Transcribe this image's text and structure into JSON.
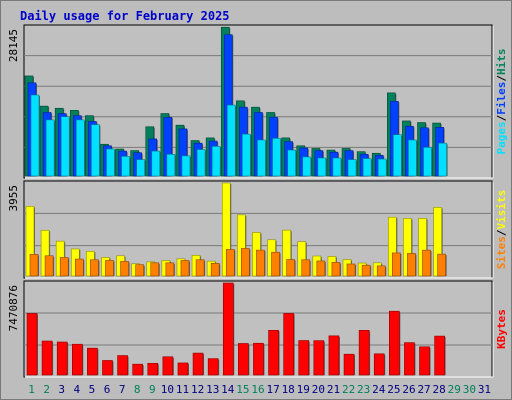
{
  "title": "Daily usage for February 2025",
  "colors": {
    "hits": "#00805c",
    "files": "#0040ff",
    "pages": "#00e0ff",
    "visits": "#ffff00",
    "sites": "#ff8000",
    "kbytes": "#ff0000",
    "weekday_label": "#000080",
    "weekend_label": "#00805c",
    "panel_bg": "#c0c0c0"
  },
  "chart_data": [
    {
      "type": "bar",
      "panel": "hits_files_pages",
      "y_tick_label": "28145",
      "ylim": [
        0,
        28145
      ],
      "legend": [
        {
          "name": "Pages",
          "color": "#00e0ff"
        },
        {
          "name": "Files",
          "color": "#0040ff"
        },
        {
          "name": "Hits",
          "color": "#00805c"
        }
      ],
      "categories": [
        "1",
        "2",
        "3",
        "4",
        "5",
        "6",
        "7",
        "8",
        "9",
        "10",
        "11",
        "12",
        "13",
        "14",
        "15",
        "16",
        "17",
        "18",
        "19",
        "20",
        "21",
        "22",
        "23",
        "24",
        "25",
        "26",
        "27",
        "28",
        "29",
        "30",
        "31"
      ],
      "series": [
        {
          "name": "Hits",
          "values": [
            18900,
            13200,
            12800,
            12400,
            11400,
            6000,
            5100,
            4800,
            9300,
            11800,
            9600,
            6700,
            7200,
            28100,
            14200,
            13000,
            12000,
            7200,
            5700,
            5200,
            4900,
            5200,
            4600,
            4300,
            15700,
            10400,
            10100,
            10000,
            null,
            null,
            null
          ]
        },
        {
          "name": "Files",
          "values": [
            17600,
            12000,
            11800,
            11400,
            10300,
            5700,
            4700,
            4400,
            7000,
            11100,
            8900,
            6200,
            6600,
            26700,
            13000,
            12000,
            11100,
            6500,
            5300,
            4800,
            4500,
            4800,
            4100,
            3900,
            14100,
            9400,
            9100,
            9200,
            null,
            null,
            null
          ]
        },
        {
          "name": "Pages",
          "values": [
            15300,
            10600,
            11200,
            10600,
            9700,
            5100,
            3700,
            3100,
            4700,
            4100,
            3800,
            5000,
            5600,
            13400,
            7900,
            6800,
            7100,
            4900,
            3600,
            3400,
            3400,
            3100,
            3300,
            3200,
            7800,
            6800,
            5400,
            6200,
            null,
            null,
            null
          ]
        }
      ]
    },
    {
      "type": "bar",
      "panel": "visits_sites",
      "y_tick_label": "3955",
      "ylim": [
        0,
        3955
      ],
      "legend": [
        {
          "name": "Sites",
          "color": "#ff8000"
        },
        {
          "name": "Visits",
          "color": "#ffff00"
        }
      ],
      "categories": [
        "1",
        "2",
        "3",
        "4",
        "5",
        "6",
        "7",
        "8",
        "9",
        "10",
        "11",
        "12",
        "13",
        "14",
        "15",
        "16",
        "17",
        "18",
        "19",
        "20",
        "21",
        "22",
        "23",
        "24",
        "25",
        "26",
        "27",
        "28",
        "29",
        "30",
        "31"
      ],
      "series": [
        {
          "name": "Visits",
          "values": [
            2960,
            1940,
            1480,
            1150,
            1050,
            790,
            860,
            520,
            600,
            660,
            730,
            880,
            630,
            3955,
            2600,
            1850,
            1540,
            1950,
            1460,
            850,
            830,
            700,
            550,
            560,
            2500,
            2450,
            2450,
            2920,
            null,
            null,
            null
          ]
        },
        {
          "name": "Sites",
          "values": [
            920,
            860,
            790,
            720,
            690,
            660,
            620,
            480,
            560,
            560,
            660,
            690,
            540,
            1130,
            1170,
            1100,
            1010,
            700,
            690,
            640,
            580,
            510,
            460,
            430,
            980,
            960,
            1100,
            930,
            null,
            null,
            null
          ]
        }
      ]
    },
    {
      "type": "bar",
      "panel": "kbytes",
      "y_tick_label": "7470876",
      "ylim": [
        0,
        7470876
      ],
      "legend": [
        {
          "name": "KBytes",
          "color": "#ff0000"
        }
      ],
      "categories": [
        "1",
        "2",
        "3",
        "4",
        "5",
        "6",
        "7",
        "8",
        "9",
        "10",
        "11",
        "12",
        "13",
        "14",
        "15",
        "16",
        "17",
        "18",
        "19",
        "20",
        "21",
        "22",
        "23",
        "24",
        "25",
        "26",
        "27",
        "28",
        "29",
        "30",
        "31"
      ],
      "series": [
        {
          "name": "KBytes",
          "values": [
            5000000,
            2760000,
            2680000,
            2500000,
            2180000,
            1180000,
            1580000,
            880000,
            950000,
            1480000,
            980000,
            1780000,
            1330000,
            7470876,
            2560000,
            2580000,
            3630000,
            5000000,
            2800000,
            2790000,
            3180000,
            1690000,
            3630000,
            1720000,
            5180000,
            2630000,
            2290000,
            3160000,
            null,
            null,
            null
          ]
        }
      ]
    }
  ],
  "weekend_days": [
    "1",
    "2",
    "8",
    "9",
    "15",
    "16",
    "22",
    "23",
    "29",
    "30"
  ]
}
